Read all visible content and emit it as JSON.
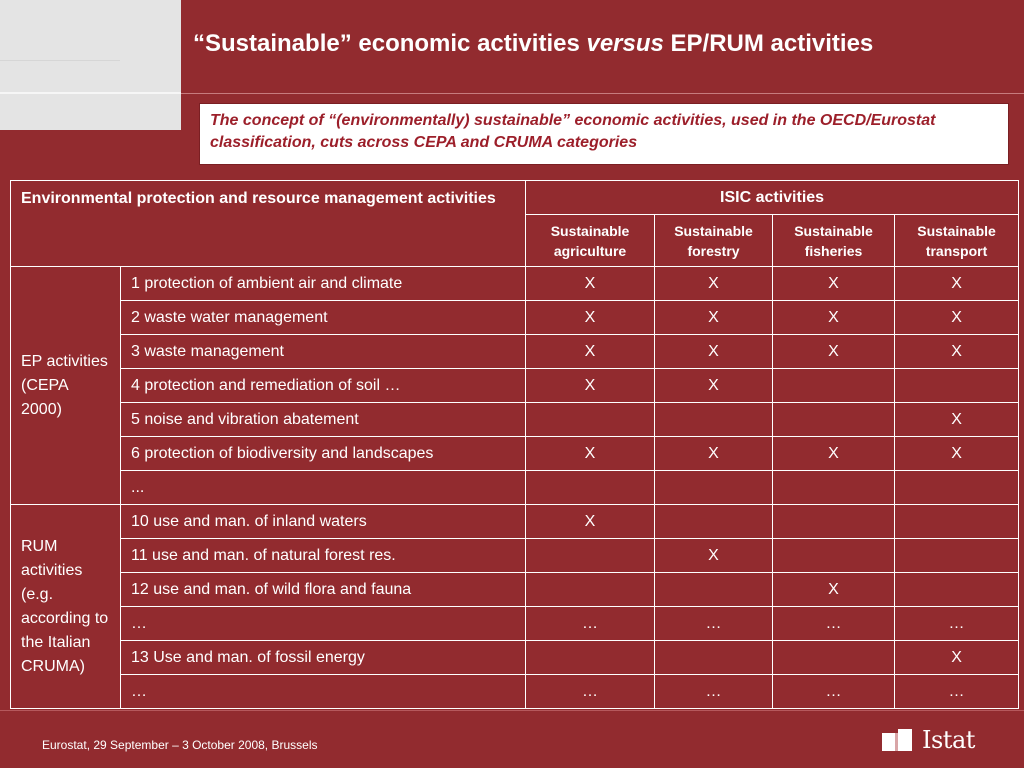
{
  "slide": {
    "title_part1": "“Sustainable” economic activities ",
    "title_em": "versus",
    "title_part2": " EP/RUM activities",
    "concept": "The concept of “(environmentally)  sustainable” economic activities, used in the OECD/Eurostat classification, cuts across CEPA and CRUMA categories"
  },
  "table": {
    "header_main": "Environmental protection and resource management activities",
    "header_isic": "ISIC activities",
    "isic_columns": [
      "Sustainable agriculture",
      "Sustainable forestry",
      "Sustainable fisheries",
      "Sustainable transport"
    ],
    "groups": [
      {
        "label": "EP activities (CEPA 2000)",
        "rows": [
          {
            "activity": "1 protection of ambient air and climate",
            "marks": [
              "X",
              "X",
              "X",
              "X"
            ]
          },
          {
            "activity": "2 waste water management",
            "marks": [
              "X",
              "X",
              "X",
              "X"
            ]
          },
          {
            "activity": "3 waste management",
            "marks": [
              "X",
              "X",
              "X",
              "X"
            ]
          },
          {
            "activity": "4 protection and remediation of soil …",
            "marks": [
              "X",
              "X",
              "",
              ""
            ]
          },
          {
            "activity": "5 noise and vibration abatement",
            "marks": [
              "",
              "",
              "",
              "X"
            ]
          },
          {
            "activity": "6 protection of biodiversity and landscapes",
            "marks": [
              "X",
              "X",
              "X",
              "X"
            ]
          },
          {
            "activity": "...",
            "marks": [
              "",
              "",
              "",
              ""
            ]
          }
        ]
      },
      {
        "label": "RUM activities (e.g. according to the Italian CRUMA)",
        "rows": [
          {
            "activity": "10 use and man. of inland waters",
            "marks": [
              "X",
              "",
              "",
              ""
            ]
          },
          {
            "activity": "11 use and man. of natural forest res.",
            "marks": [
              "",
              "X",
              "",
              ""
            ]
          },
          {
            "activity": "12 use and man. of wild flora and fauna",
            "marks": [
              "",
              "",
              "X",
              ""
            ]
          },
          {
            "activity": "…",
            "marks": [
              "…",
              "…",
              "…",
              "…"
            ]
          },
          {
            "activity": "13 Use and man. of fossil energy",
            "marks": [
              "",
              "",
              "",
              "X"
            ]
          },
          {
            "activity": "…",
            "marks": [
              "…",
              "…",
              "…",
              "…"
            ]
          }
        ]
      }
    ]
  },
  "footer": {
    "text": "Eurostat, 29 September – 3 October 2008, Brussels",
    "logo_text": "Istat"
  },
  "colors": {
    "background": "#922b2f",
    "concept_text": "#9c1f2a",
    "corner": "#e4e4e4"
  }
}
